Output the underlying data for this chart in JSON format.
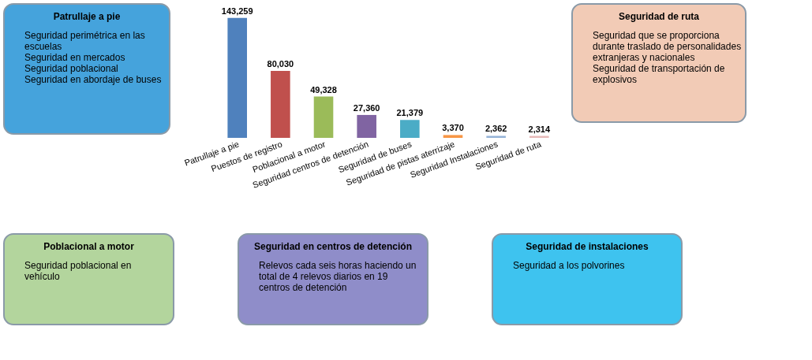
{
  "chart_data": [
    {
      "type": "other",
      "title": "Patrullaje a pie",
      "color": "#45a3dc",
      "annotations": [
        "Seguridad perimétrica en las escuelas",
        "Seguridad en mercados",
        "Seguridad poblacional",
        "Seguridad en abordaje de buses"
      ]
    },
    {
      "type": "bar",
      "categories": [
        "Patrullaje  a pie",
        "Puestos de registro",
        "Poblacional  a motor",
        "Seguridad centros de detención",
        "Seguridad de buses",
        "Seguridad de pistas aterrizaje",
        "Seguridad Instalaciones",
        "Seguridad de ruta"
      ],
      "values": [
        143259,
        80030,
        49328,
        27360,
        21379,
        3370,
        2362,
        2314
      ],
      "colors": [
        "#4f81bd",
        "#c0504d",
        "#9bbb59",
        "#8064a2",
        "#4bacc6",
        "#f79646",
        "#95b3d7",
        "#e6b9b8"
      ],
      "value_labels": [
        "143,259",
        "80,030",
        "49,328",
        "27,360",
        "21,379",
        "3,370",
        "2,362",
        "2,314"
      ]
    },
    {
      "type": "other",
      "title": "Seguridad de ruta",
      "color": "#f2cbb6",
      "annotations": [
        "Seguridad que se proporciona durante traslado de personalidades extranjeras y nacionales",
        "Seguridad de transportación de explosivos"
      ]
    },
    {
      "type": "other",
      "title": "Poblacional  a motor",
      "color": "#b3d59d",
      "annotations": [
        "Seguridad poblacional en vehículo"
      ]
    },
    {
      "type": "other",
      "title": "Seguridad en centros de detención",
      "color": "#8f8dc9",
      "annotations": [
        "Relevos cada seis horas haciendo un total de 4 relevos diarios en 19 centros de detención"
      ]
    },
    {
      "type": "other",
      "title": "Seguridad de instalaciones",
      "color": "#3ec3ef",
      "annotations": [
        "Seguridad a los polvorines"
      ]
    }
  ]
}
